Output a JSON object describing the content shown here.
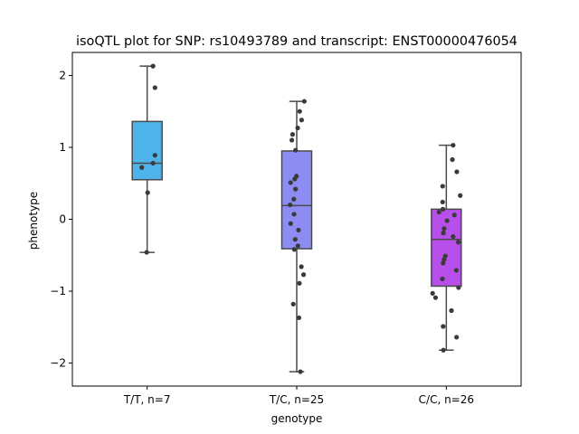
{
  "chart_data": {
    "type": "box",
    "title": "isoQTL plot for SNP: rs10493789 and transcript: ENST00000476054",
    "xlabel": "genotype",
    "ylabel": "phenotype",
    "ylim": [
      -2.32,
      2.32
    ],
    "yticks": [
      2,
      1,
      0,
      -1,
      -2
    ],
    "ytick_labels": [
      "2",
      "1",
      "0",
      "−1",
      "−2"
    ],
    "grid": false,
    "categories": [
      "T/T, n=7",
      "T/C, n=25",
      "C/C, n=26"
    ],
    "colors": [
      "#4db3ea",
      "#8c8cf2",
      "#b84fea"
    ],
    "boxes": [
      {
        "q1": 0.55,
        "median": 0.78,
        "q3": 1.36,
        "whisker_low": -0.46,
        "whisker_high": 2.13
      },
      {
        "q1": -0.41,
        "median": 0.19,
        "q3": 0.95,
        "whisker_low": -2.12,
        "whisker_high": 1.64
      },
      {
        "q1": -0.93,
        "median": -0.28,
        "q3": 0.14,
        "whisker_low": -1.82,
        "whisker_high": 1.03
      }
    ],
    "points": [
      [
        {
          "j": 0.24,
          "y": 2.13
        },
        {
          "j": 0.32,
          "y": 1.83
        },
        {
          "j": 0.32,
          "y": 0.89
        },
        {
          "j": 0.24,
          "y": 0.78
        },
        {
          "j": -0.22,
          "y": 0.72
        },
        {
          "j": 0.02,
          "y": 0.37
        },
        {
          "j": -0.02,
          "y": -0.46
        }
      ],
      [
        {
          "j": 0.31,
          "y": 1.64
        },
        {
          "j": 0.12,
          "y": 1.5
        },
        {
          "j": 0.2,
          "y": 1.38
        },
        {
          "j": 0.04,
          "y": 1.27
        },
        {
          "j": -0.17,
          "y": 1.18
        },
        {
          "j": -0.2,
          "y": 1.1
        },
        {
          "j": -0.05,
          "y": 0.96
        },
        {
          "j": -0.25,
          "y": 0.51
        },
        {
          "j": -0.08,
          "y": 0.56
        },
        {
          "j": -0.01,
          "y": 0.6
        },
        {
          "j": -0.05,
          "y": 0.42
        },
        {
          "j": -0.12,
          "y": 0.28
        },
        {
          "j": -0.27,
          "y": 0.2
        },
        {
          "j": -0.11,
          "y": 0.07
        },
        {
          "j": -0.25,
          "y": -0.06
        },
        {
          "j": 0.07,
          "y": -0.15
        },
        {
          "j": -0.06,
          "y": -0.28
        },
        {
          "j": 0.05,
          "y": -0.37
        },
        {
          "j": -0.1,
          "y": -0.42
        },
        {
          "j": 0.19,
          "y": -0.66
        },
        {
          "j": 0.28,
          "y": -0.77
        },
        {
          "j": 0.11,
          "y": -0.89
        },
        {
          "j": -0.14,
          "y": -1.18
        },
        {
          "j": 0.09,
          "y": -1.37
        },
        {
          "j": 0.15,
          "y": -2.12
        }
      ],
      [
        {
          "j": 0.28,
          "y": 1.03
        },
        {
          "j": 0.43,
          "y": 0.66
        },
        {
          "j": 0.25,
          "y": 0.83
        },
        {
          "j": -0.15,
          "y": 0.46
        },
        {
          "j": 0.57,
          "y": 0.33
        },
        {
          "j": -0.15,
          "y": 0.24
        },
        {
          "j": -0.14,
          "y": 0.14
        },
        {
          "j": -0.3,
          "y": 0.1
        },
        {
          "j": 0.33,
          "y": 0.06
        },
        {
          "j": 0.03,
          "y": -0.02
        },
        {
          "j": -0.09,
          "y": -0.13
        },
        {
          "j": -0.12,
          "y": -0.19
        },
        {
          "j": 0.28,
          "y": -0.24
        },
        {
          "j": 0.49,
          "y": -0.32
        },
        {
          "j": -0.04,
          "y": -0.51
        },
        {
          "j": -0.09,
          "y": -0.56
        },
        {
          "j": -0.13,
          "y": -0.61
        },
        {
          "j": 0.41,
          "y": -0.71
        },
        {
          "j": -0.16,
          "y": -0.83
        },
        {
          "j": 0.5,
          "y": -0.95
        },
        {
          "j": -0.56,
          "y": -1.03
        },
        {
          "j": -0.44,
          "y": -1.09
        },
        {
          "j": 0.21,
          "y": -1.27
        },
        {
          "j": -0.13,
          "y": -1.49
        },
        {
          "j": 0.42,
          "y": -1.64
        },
        {
          "j": -0.12,
          "y": -1.82
        }
      ]
    ]
  }
}
